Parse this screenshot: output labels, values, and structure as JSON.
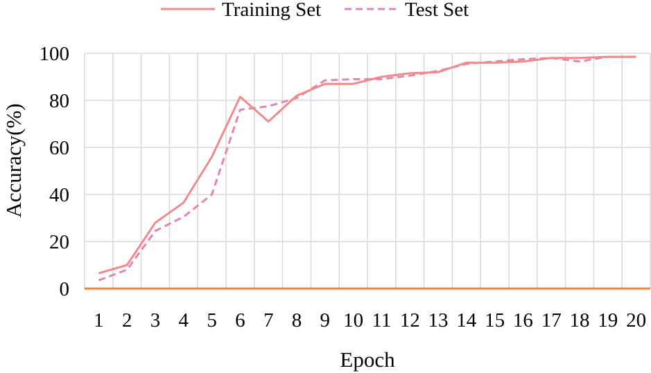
{
  "chart_data": {
    "type": "line",
    "xlabel": "Epoch",
    "ylabel": "Accuracy(%)",
    "x": [
      1,
      2,
      3,
      4,
      5,
      6,
      7,
      8,
      9,
      10,
      11,
      12,
      13,
      14,
      15,
      16,
      17,
      18,
      19,
      20
    ],
    "ylim": [
      0,
      100
    ],
    "yticks": [
      0,
      20,
      40,
      60,
      80,
      100
    ],
    "grid": true,
    "legend_position": "top-center",
    "series": [
      {
        "name": "Training Set",
        "style": "solid",
        "values": [
          6.5,
          10,
          28,
          36.5,
          56,
          81.5,
          71,
          82,
          87,
          87,
          90,
          91.5,
          92,
          96,
          96,
          96.5,
          98,
          98,
          98.5,
          98.5
        ]
      },
      {
        "name": "Test Set",
        "style": "dashed",
        "values": [
          3.5,
          8,
          24.5,
          30.5,
          40,
          76,
          77.5,
          81,
          88.5,
          89,
          89,
          90.5,
          92.5,
          95.5,
          96.5,
          97.5,
          98,
          96.5,
          98.5,
          98.5
        ]
      }
    ],
    "colors": {
      "training": "#f08a8a",
      "test": "#e882b4",
      "baseline": "#f0843c",
      "grid": "#d9d9d9"
    }
  }
}
